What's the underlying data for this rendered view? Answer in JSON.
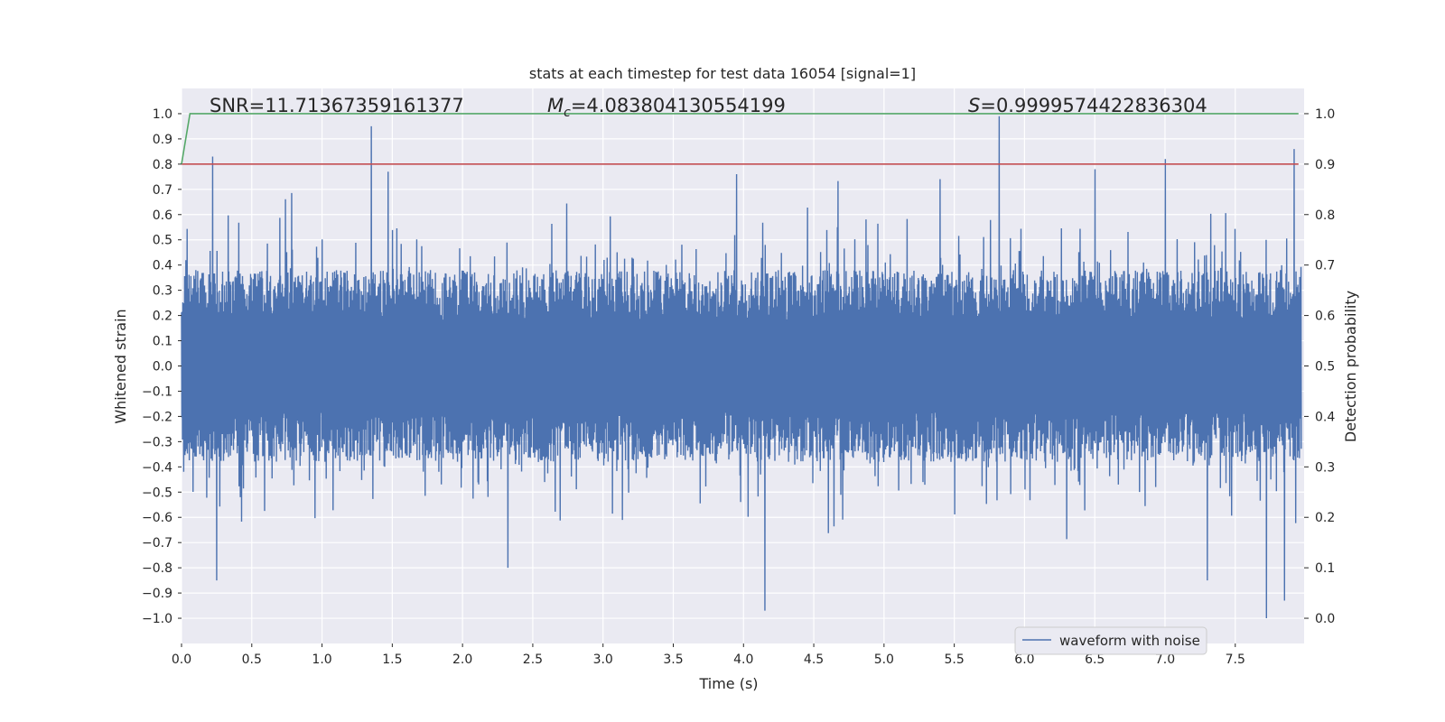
{
  "chart_data": {
    "type": "line",
    "title": "stats at each timestep for test data 16054 [signal=1]",
    "xlabel": "Time (s)",
    "ylabel": "Whitened strain",
    "y2label": "Detection probability",
    "xlim": [
      0.0,
      7.99
    ],
    "ylim": [
      -1.1,
      1.1
    ],
    "y2lim": [
      -0.05,
      1.05
    ],
    "xticks": [
      "0.0",
      "0.5",
      "1.0",
      "1.5",
      "2.0",
      "2.5",
      "3.0",
      "3.5",
      "4.0",
      "4.5",
      "5.0",
      "5.5",
      "6.0",
      "6.5",
      "7.0",
      "7.5"
    ],
    "yticks": [
      "1.0",
      "0.9",
      "0.8",
      "0.7",
      "0.6",
      "0.5",
      "0.4",
      "0.3",
      "0.2",
      "0.1",
      "0.0",
      "−0.1",
      "−0.2",
      "−0.3",
      "−0.4",
      "−0.5",
      "−0.6",
      "−0.7",
      "−0.8",
      "−0.9",
      "−1.0"
    ],
    "y2ticks": [
      "1.0",
      "0.9",
      "0.8",
      "0.7",
      "0.6",
      "0.5",
      "0.4",
      "0.3",
      "0.2",
      "0.1",
      "0.0"
    ],
    "annotations": {
      "snr": "SNR=11.71367359161377",
      "mc_symbol": "M",
      "mc_subscript": "c",
      "mc_value": "=4.083804130554199",
      "s_symbol": "S",
      "s_value": "=0.9999574422836304"
    },
    "legend": {
      "label": "waveform with noise",
      "location": "lower-right"
    },
    "series": [
      {
        "name": "waveform with noise",
        "axis": "left",
        "color": "#4c72b0",
        "description": "dense noisy strain trace, envelope roughly ±0.4 with spikes",
        "spikes_up": [
          [
            0.22,
            0.83
          ],
          [
            1.35,
            0.95
          ],
          [
            1.47,
            0.77
          ],
          [
            3.95,
            0.76
          ],
          [
            5.82,
            0.99
          ],
          [
            6.5,
            0.78
          ],
          [
            7.0,
            0.82
          ],
          [
            7.92,
            0.86
          ]
        ],
        "spikes_down": [
          [
            0.25,
            -0.85
          ],
          [
            2.32,
            -0.8
          ],
          [
            4.15,
            -0.97
          ],
          [
            7.3,
            -0.85
          ],
          [
            7.72,
            -1.0
          ],
          [
            7.85,
            -0.93
          ]
        ]
      },
      {
        "name": "detection probability",
        "axis": "right",
        "color": "#55a868",
        "x": [
          0.0,
          0.06,
          0.1,
          7.95
        ],
        "values": [
          0.9,
          1.0,
          1.0,
          1.0
        ]
      },
      {
        "name": "threshold",
        "axis": "right",
        "color": "#c44e52",
        "x": [
          0.0,
          7.95
        ],
        "values": [
          0.9,
          0.9
        ]
      }
    ]
  }
}
